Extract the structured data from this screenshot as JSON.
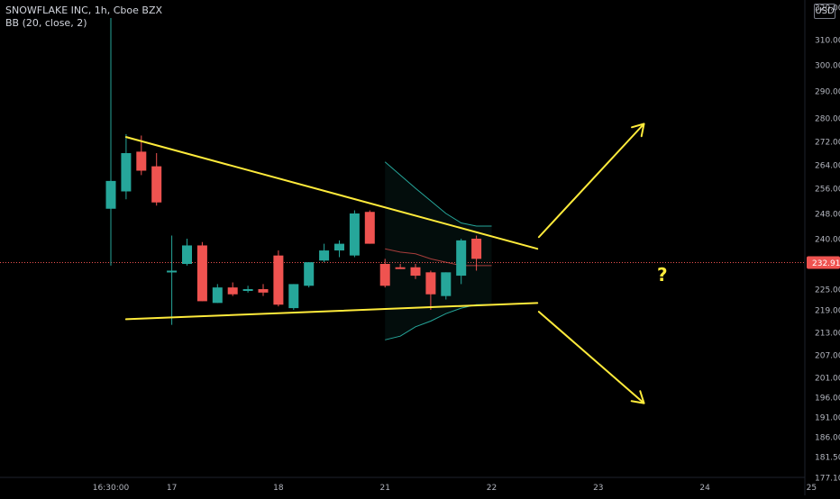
{
  "header": {
    "symbol_line": "SNOWFLAKE INC, 1h, Cboe BZX",
    "indicator_line": "BB (20, close, 2)",
    "currency": "USD"
  },
  "colors": {
    "background": "#000000",
    "up": "#26a69a",
    "down": "#ef5350",
    "drawing": "#ffeb3b",
    "bb_band": "#26a69a",
    "bb_basis": "#ef5350",
    "axis_text": "#b2b5be",
    "price_line": "#ef5350"
  },
  "chart_data": {
    "type": "candlestick",
    "title": "SNOWFLAKE INC, 1h, Cboe BZX",
    "y_axis": {
      "ticks": [
        {
          "label": "320.00",
          "value": 320
        },
        {
          "label": "310.00",
          "value": 310
        },
        {
          "label": "300.00",
          "value": 300
        },
        {
          "label": "290.00",
          "value": 290
        },
        {
          "label": "280.00",
          "value": 280
        },
        {
          "label": "272.00",
          "value": 272
        },
        {
          "label": "264.00",
          "value": 264
        },
        {
          "label": "256.00",
          "value": 256
        },
        {
          "label": "248.00",
          "value": 248
        },
        {
          "label": "240.00",
          "value": 240
        },
        {
          "label": "225.00",
          "value": 225
        },
        {
          "label": "219.00",
          "value": 219
        },
        {
          "label": "213.00",
          "value": 213
        },
        {
          "label": "207.00",
          "value": 207
        },
        {
          "label": "201.00",
          "value": 201
        },
        {
          "label": "196.00",
          "value": 196
        },
        {
          "label": "191.00",
          "value": 191
        },
        {
          "label": "186.00",
          "value": 186
        },
        {
          "label": "181.50",
          "value": 181.5
        },
        {
          "label": "177.10",
          "value": 177.1
        }
      ]
    },
    "x_axis": {
      "ticks": [
        {
          "label": "16:30:00",
          "bar": 0
        },
        {
          "label": "17",
          "bar": 4
        },
        {
          "label": "18",
          "bar": 11
        },
        {
          "label": "21",
          "bar": 18
        },
        {
          "label": "22",
          "bar": 25
        },
        {
          "label": "23",
          "bar": 32
        },
        {
          "label": "24",
          "bar": 39
        },
        {
          "label": "25",
          "bar": 46
        }
      ]
    },
    "last_price": {
      "label": "232.91",
      "value": 232.91
    },
    "candles": [
      {
        "o": 249.5,
        "h": 322.0,
        "l": 232.0,
        "c": 258.5
      },
      {
        "o": 255.0,
        "h": 274.5,
        "l": 252.5,
        "c": 268.0
      },
      {
        "o": 268.5,
        "h": 274.0,
        "l": 260.5,
        "c": 262.0
      },
      {
        "o": 263.5,
        "h": 268.0,
        "l": 250.5,
        "c": 251.5
      },
      {
        "o": 230.0,
        "h": 241.0,
        "l": 215.0,
        "c": 230.5
      },
      {
        "o": 232.5,
        "h": 240.0,
        "l": 232.0,
        "c": 238.0
      },
      {
        "o": 238.0,
        "h": 239.0,
        "l": 221.5,
        "c": 221.5
      },
      {
        "o": 221.0,
        "h": 226.5,
        "l": 221.0,
        "c": 225.5
      },
      {
        "o": 225.5,
        "h": 227.0,
        "l": 223.0,
        "c": 223.5
      },
      {
        "o": 224.5,
        "h": 226.0,
        "l": 224.0,
        "c": 225.0
      },
      {
        "o": 225.0,
        "h": 226.5,
        "l": 223.0,
        "c": 224.0
      },
      {
        "o": 235.0,
        "h": 236.5,
        "l": 220.0,
        "c": 220.5
      },
      {
        "o": 219.5,
        "h": 226.5,
        "l": 219.0,
        "c": 226.5
      },
      {
        "o": 226.0,
        "h": 233.0,
        "l": 225.5,
        "c": 233.0
      },
      {
        "o": 233.5,
        "h": 238.5,
        "l": 233.0,
        "c": 236.5
      },
      {
        "o": 236.5,
        "h": 239.5,
        "l": 234.5,
        "c": 238.5
      },
      {
        "o": 235.0,
        "h": 249.0,
        "l": 234.5,
        "c": 248.0
      },
      {
        "o": 248.5,
        "h": 249.0,
        "l": 238.5,
        "c": 238.5
      },
      {
        "o": 232.5,
        "h": 234.0,
        "l": 225.5,
        "c": 226.0
      },
      {
        "o": 231.5,
        "h": 232.5,
        "l": 231.0,
        "c": 231.0
      },
      {
        "o": 231.5,
        "h": 232.5,
        "l": 228.0,
        "c": 229.0
      },
      {
        "o": 230.0,
        "h": 230.5,
        "l": 219.0,
        "c": 223.5
      },
      {
        "o": 223.0,
        "h": 230.0,
        "l": 222.0,
        "c": 230.0
      },
      {
        "o": 229.0,
        "h": 240.0,
        "l": 226.5,
        "c": 239.5
      },
      {
        "o": 240.0,
        "h": 241.0,
        "l": 230.5,
        "c": 234.0
      }
    ],
    "bollinger": {
      "start_bar": 18,
      "upper": [
        265.0,
        260.5,
        256.0,
        252.0,
        248.0,
        245.0,
        244.0,
        244.0
      ],
      "basis": [
        237.0,
        236.0,
        235.5,
        234.0,
        233.0,
        232.0,
        232.0,
        232.0
      ],
      "lower": [
        211.0,
        212.0,
        214.5,
        216.0,
        218.0,
        219.5,
        220.5,
        220.5
      ]
    },
    "drawings": {
      "upper_trendline": {
        "from": {
          "bar": 1,
          "price": 273.5
        },
        "to": {
          "bar": 28,
          "price": 237.0
        }
      },
      "lower_trendline": {
        "from": {
          "bar": 1,
          "price": 216.5
        },
        "to": {
          "bar": 28,
          "price": 221.0
        }
      },
      "up_arrow": {
        "from": {
          "bar": 28.1,
          "price": 240.5
        },
        "to": {
          "bar": 35,
          "price": 278.0
        }
      },
      "down_arrow": {
        "from": {
          "bar": 28.1,
          "price": 218.5
        },
        "to": {
          "bar": 35,
          "price": 194.5
        }
      },
      "question_mark": {
        "text": "?",
        "bar": 36.2,
        "price": 229.5
      }
    }
  }
}
